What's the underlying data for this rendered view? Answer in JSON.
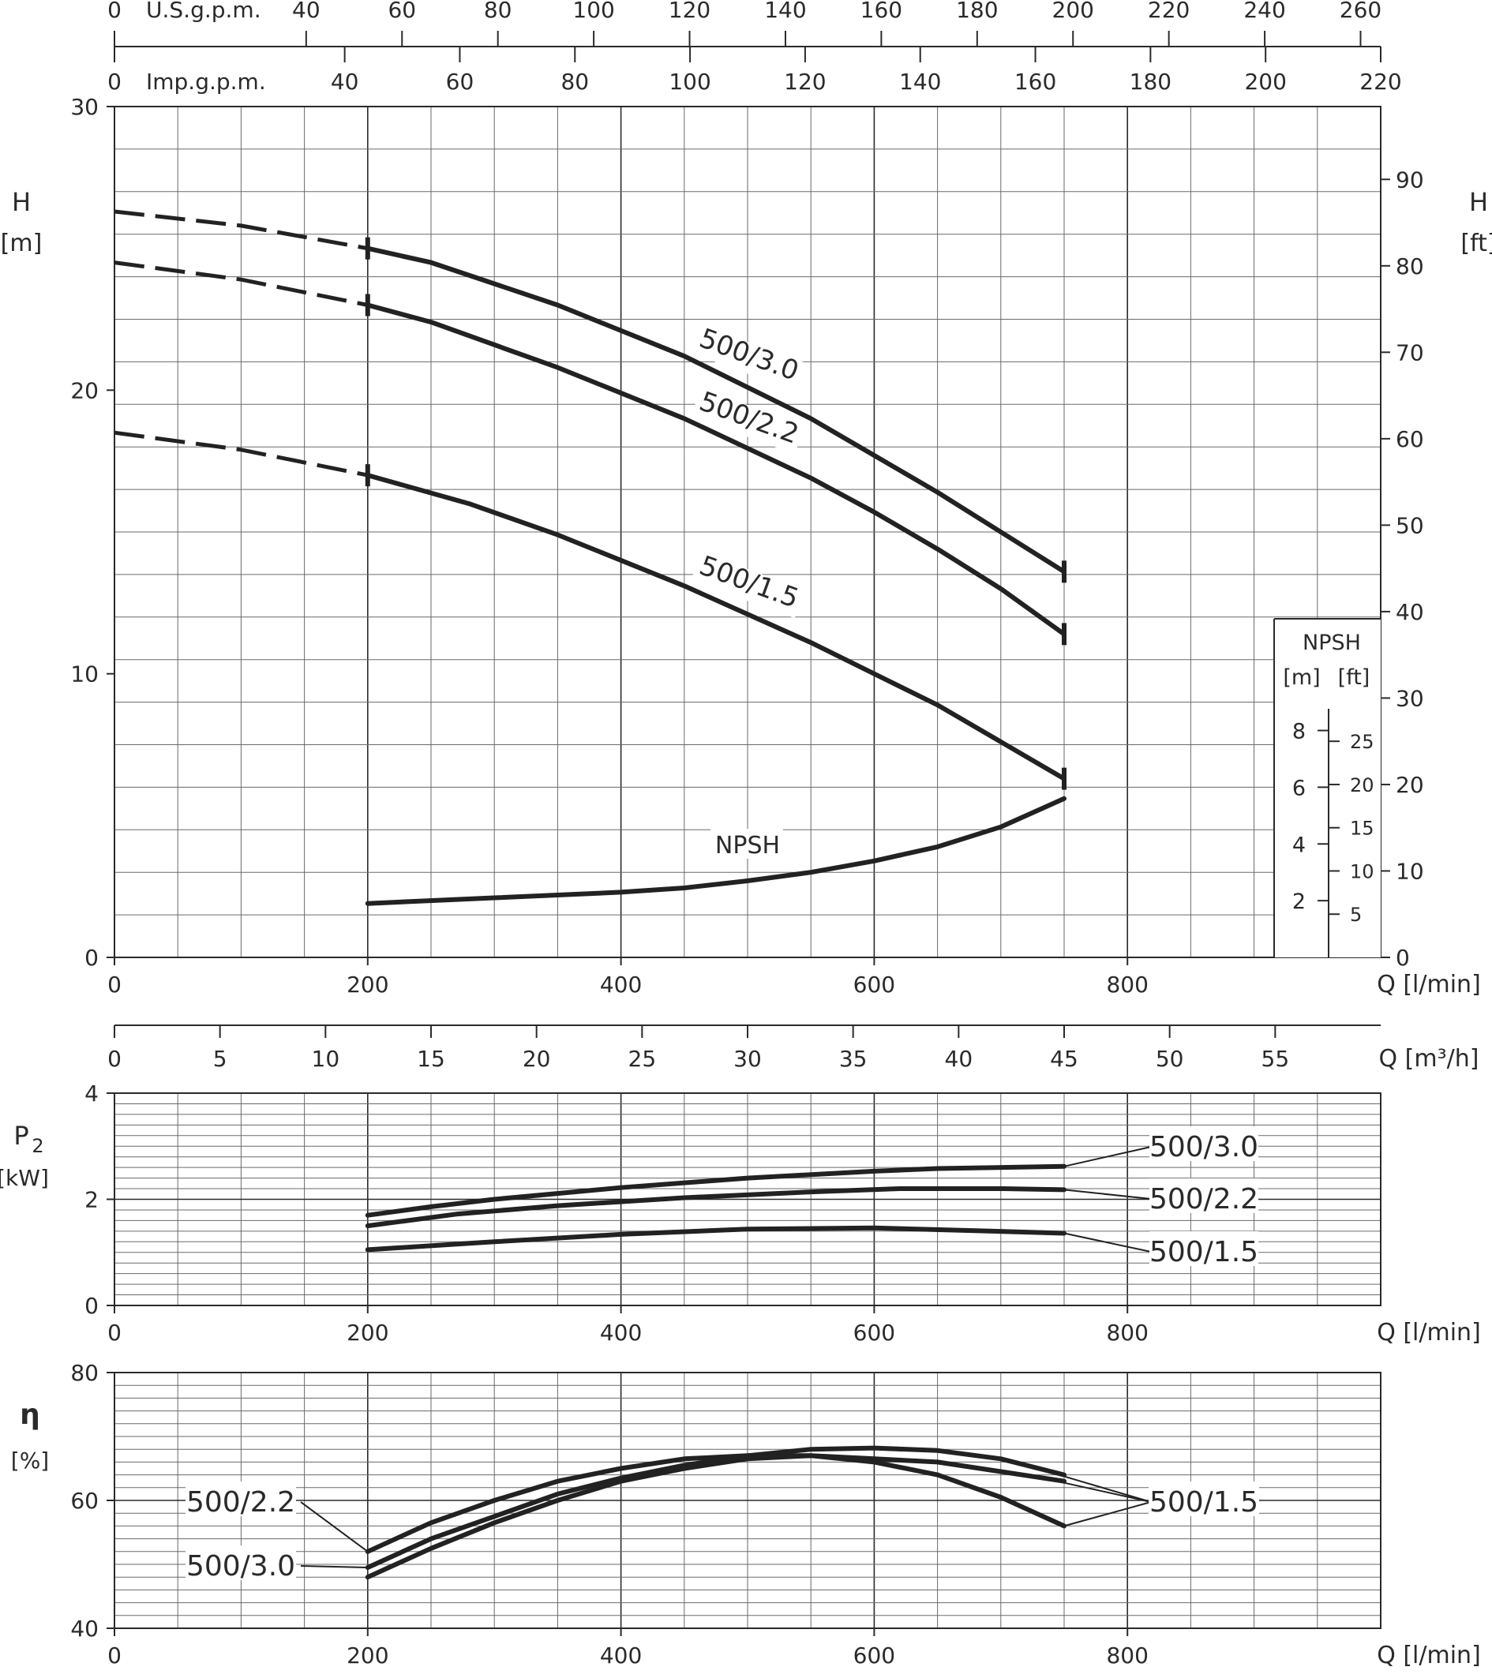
{
  "chart_data": {
    "type": "line",
    "flow_axes": {
      "usgpm": {
        "label": "U.S.g.p.m.",
        "ticks": [
          0,
          40,
          60,
          80,
          100,
          120,
          140,
          160,
          180,
          200,
          220,
          240,
          260
        ]
      },
      "impgpm": {
        "label": "Imp.g.p.m.",
        "ticks": [
          0,
          40,
          60,
          80,
          100,
          120,
          140,
          160,
          180,
          200,
          220
        ]
      },
      "lmin": {
        "label": "Q  [l/min]",
        "ticks": [
          0,
          200,
          400,
          600,
          800
        ]
      },
      "m3h": {
        "label": "Q  [m³/h]",
        "ticks": [
          0,
          5,
          10,
          15,
          20,
          25,
          30,
          35,
          40,
          45,
          50,
          55
        ]
      }
    },
    "head": {
      "ylabel": "H",
      "yunit": "[m]",
      "ylim": [
        0,
        30
      ],
      "yticks": [
        0,
        10,
        20,
        30
      ],
      "ylabel_right": "H",
      "yunit_right": "[ft]",
      "yticks_right": [
        0,
        10,
        20,
        30,
        40,
        50,
        60,
        70,
        80,
        90
      ],
      "xlim": [
        0,
        1000
      ],
      "series": [
        {
          "name": "500/3.0",
          "solid": [
            [
              200,
              25.0
            ],
            [
              250,
              24.5
            ],
            [
              350,
              23.0
            ],
            [
              450,
              21.2
            ],
            [
              550,
              19.0
            ],
            [
              600,
              17.7
            ],
            [
              650,
              16.4
            ],
            [
              700,
              15.0
            ],
            [
              750,
              13.6
            ]
          ],
          "dashed": [
            [
              0,
              26.3
            ],
            [
              100,
              25.8
            ],
            [
              200,
              25.0
            ]
          ]
        },
        {
          "name": "500/2.2",
          "solid": [
            [
              200,
              23.0
            ],
            [
              250,
              22.4
            ],
            [
              350,
              20.8
            ],
            [
              450,
              19.0
            ],
            [
              550,
              16.9
            ],
            [
              600,
              15.7
            ],
            [
              650,
              14.4
            ],
            [
              700,
              13.0
            ],
            [
              750,
              11.4
            ]
          ],
          "dashed": [
            [
              0,
              24.5
            ],
            [
              100,
              23.9
            ],
            [
              200,
              23.0
            ]
          ]
        },
        {
          "name": "500/1.5",
          "solid": [
            [
              200,
              17.0
            ],
            [
              280,
              16.0
            ],
            [
              350,
              14.9
            ],
            [
              450,
              13.1
            ],
            [
              550,
              11.1
            ],
            [
              600,
              10.0
            ],
            [
              650,
              8.9
            ],
            [
              700,
              7.6
            ],
            [
              750,
              6.3
            ]
          ],
          "dashed": [
            [
              0,
              18.5
            ],
            [
              100,
              17.9
            ],
            [
              200,
              17.0
            ]
          ]
        }
      ],
      "npsh": {
        "name": "NPSH",
        "values_m": [
          [
            200,
            1.9
          ],
          [
            300,
            2.1
          ],
          [
            400,
            2.3
          ],
          [
            450,
            2.45
          ],
          [
            500,
            2.7
          ],
          [
            550,
            3.0
          ],
          [
            600,
            3.4
          ],
          [
            650,
            3.9
          ],
          [
            700,
            4.6
          ],
          [
            750,
            5.6
          ]
        ]
      },
      "npsh_inset": {
        "title": "NPSH",
        "m_unit": "[m]",
        "ft_unit": "[ft]",
        "m_ticks": [
          2,
          4,
          6,
          8
        ],
        "ft_ticks": [
          5,
          10,
          15,
          20,
          25
        ]
      }
    },
    "power": {
      "ylabel": "P",
      "ylabel_sub": "2",
      "yunit": "[kW]",
      "ylim": [
        0,
        4
      ],
      "yticks": [
        0,
        2,
        4
      ],
      "xlim": [
        0,
        1000
      ],
      "series": [
        {
          "name": "500/3.0",
          "values": [
            [
              200,
              1.7
            ],
            [
              250,
              1.86
            ],
            [
              300,
              2.0
            ],
            [
              400,
              2.22
            ],
            [
              500,
              2.4
            ],
            [
              600,
              2.53
            ],
            [
              650,
              2.58
            ],
            [
              750,
              2.62
            ]
          ]
        },
        {
          "name": "500/2.2",
          "values": [
            [
              200,
              1.5
            ],
            [
              270,
              1.72
            ],
            [
              350,
              1.88
            ],
            [
              450,
              2.03
            ],
            [
              550,
              2.14
            ],
            [
              620,
              2.2
            ],
            [
              700,
              2.2
            ],
            [
              750,
              2.18
            ]
          ]
        },
        {
          "name": "500/1.5",
          "values": [
            [
              200,
              1.05
            ],
            [
              300,
              1.2
            ],
            [
              400,
              1.34
            ],
            [
              500,
              1.44
            ],
            [
              600,
              1.46
            ],
            [
              680,
              1.41
            ],
            [
              750,
              1.36
            ]
          ]
        }
      ]
    },
    "efficiency": {
      "ylabel": "η",
      "yunit": "[%]",
      "ylim": [
        40,
        80
      ],
      "yticks": [
        40,
        60,
        80
      ],
      "xlim": [
        0,
        1000
      ],
      "series": [
        {
          "name": "500/2.2",
          "values": [
            [
              200,
              52.0
            ],
            [
              250,
              56.5
            ],
            [
              300,
              60.0
            ],
            [
              350,
              63.0
            ],
            [
              400,
              65.0
            ],
            [
              450,
              66.5
            ],
            [
              500,
              67.0
            ],
            [
              550,
              67.0
            ],
            [
              600,
              66.5
            ],
            [
              650,
              66.0
            ],
            [
              700,
              64.5
            ],
            [
              750,
              63.0
            ]
          ]
        },
        {
          "name": "500/3.0",
          "values": [
            [
              200,
              49.5
            ],
            [
              250,
              54.0
            ],
            [
              300,
              57.5
            ],
            [
              350,
              61.0
            ],
            [
              400,
              63.5
            ],
            [
              450,
              65.5
            ],
            [
              500,
              67.0
            ],
            [
              550,
              68.0
            ],
            [
              600,
              68.2
            ],
            [
              650,
              67.8
            ],
            [
              700,
              66.5
            ],
            [
              750,
              64.0
            ]
          ]
        },
        {
          "name": "500/1.5",
          "values": [
            [
              200,
              48.0
            ],
            [
              250,
              52.5
            ],
            [
              300,
              56.5
            ],
            [
              350,
              60.0
            ],
            [
              400,
              63.0
            ],
            [
              450,
              65.0
            ],
            [
              500,
              66.5
            ],
            [
              550,
              67.0
            ],
            [
              600,
              66.0
            ],
            [
              650,
              64.0
            ],
            [
              700,
              60.5
            ],
            [
              750,
              56.0
            ]
          ]
        }
      ]
    }
  }
}
